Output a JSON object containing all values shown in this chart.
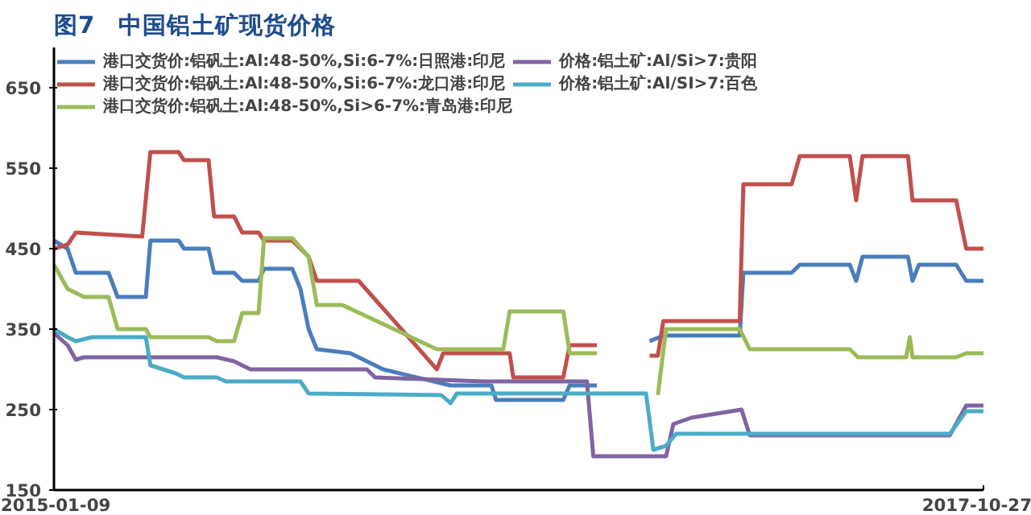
{
  "chart_data": {
    "type": "line",
    "title": "图7　中国铝土矿现货价格",
    "xlim": [
      "2015-01-09",
      "2017-10-27"
    ],
    "xticks": [
      "2015-01-09",
      "2017-10-27"
    ],
    "ylim": [
      150,
      700
    ],
    "yticks": [
      150,
      250,
      350,
      450,
      550,
      650
    ],
    "grid": false,
    "legend": "top left",
    "line_style": "solid",
    "marker": "none",
    "series": [
      {
        "name": "港口交货价:铝矾土:Al:48-50%,Si:6-7%:日照港:印尼",
        "color": "#4a7ebb",
        "x": [
          "2015-01-09",
          "2015-01-24",
          "2015-02-02",
          "2015-03-10",
          "2015-03-20",
          "2015-04-20",
          "2015-04-25",
          "2015-05-26",
          "2015-06-01",
          "2015-06-28",
          "2015-07-04",
          "2015-07-26",
          "2015-08-04",
          "2015-08-22",
          "2015-08-28",
          "2015-09-28",
          "2015-10-07",
          "2015-10-16",
          "2015-10-25",
          "2015-12-01",
          "2016-01-06",
          "2016-03-20",
          "2016-05-04",
          "2016-05-09",
          "2016-07-22",
          "2016-07-29",
          "2016-08-28",
          "2016-09-25",
          "2016-10-25",
          "2016-11-09",
          "2017-02-01",
          "2017-02-05",
          "2017-03-30",
          "2017-04-08",
          "2017-06-02",
          "2017-06-09",
          "2017-06-16",
          "2017-08-05",
          "2017-08-10",
          "2017-08-17",
          "2017-09-27",
          "2017-10-08",
          "2017-10-27"
        ],
        "values": [
          460,
          450,
          420,
          420,
          390,
          390,
          460,
          460,
          450,
          450,
          420,
          420,
          410,
          410,
          425,
          425,
          400,
          350,
          325,
          320,
          300,
          280,
          280,
          262,
          262,
          280,
          280,
          null,
          335,
          342,
          342,
          420,
          420,
          430,
          430,
          410,
          440,
          440,
          410,
          430,
          430,
          410,
          410
        ]
      },
      {
        "name": "港口交货价:铝矾土:Al:48-50%,Si:6-7%:龙口港:印尼",
        "color": "#c0504d",
        "x": [
          "2015-01-09",
          "2015-01-24",
          "2015-02-02",
          "2015-04-16",
          "2015-04-25",
          "2015-05-26",
          "2015-06-01",
          "2015-06-28",
          "2015-07-04",
          "2015-07-26",
          "2015-08-04",
          "2015-08-22",
          "2015-08-28",
          "2015-09-28",
          "2015-10-16",
          "2015-10-25",
          "2015-12-10",
          "2016-03-05",
          "2016-03-12",
          "2016-05-24",
          "2016-05-28",
          "2016-07-22",
          "2016-07-29",
          "2016-08-28",
          "2016-09-25",
          "2016-10-25",
          "2016-11-03",
          "2016-11-09",
          "2017-02-01",
          "2017-02-05",
          "2017-03-30",
          "2017-04-08",
          "2017-06-02",
          "2017-06-09",
          "2017-06-16",
          "2017-08-05",
          "2017-08-10",
          "2017-09-27",
          "2017-10-08",
          "2017-10-27"
        ],
        "values": [
          450,
          455,
          470,
          465,
          570,
          570,
          560,
          560,
          490,
          490,
          470,
          470,
          460,
          460,
          440,
          410,
          410,
          300,
          320,
          320,
          290,
          290,
          330,
          330,
          null,
          317,
          317,
          360,
          360,
          530,
          530,
          565,
          565,
          510,
          565,
          565,
          510,
          510,
          450,
          450
        ]
      },
      {
        "name": "港口交货价:铝矾土:Al:48-50%,Si>6-7%:青岛港:印尼",
        "color": "#9bbb59",
        "x": [
          "2015-01-09",
          "2015-01-24",
          "2015-02-11",
          "2015-03-10",
          "2015-03-20",
          "2015-04-20",
          "2015-04-25",
          "2015-06-28",
          "2015-07-07",
          "2015-07-26",
          "2015-08-04",
          "2015-08-22",
          "2015-08-28",
          "2015-09-28",
          "2015-10-16",
          "2015-10-25",
          "2015-11-22",
          "2016-03-05",
          "2016-05-17",
          "2016-05-24",
          "2016-07-22",
          "2016-07-29",
          "2016-08-28",
          "2016-09-25",
          "2016-11-03",
          "2016-11-12",
          "2017-02-01",
          "2017-02-12",
          "2017-06-02",
          "2017-06-11",
          "2017-08-03",
          "2017-08-07",
          "2017-08-10",
          "2017-09-27",
          "2017-10-08",
          "2017-10-27"
        ],
        "values": [
          430,
          400,
          390,
          390,
          350,
          350,
          340,
          340,
          335,
          335,
          370,
          370,
          463,
          463,
          440,
          380,
          380,
          325,
          325,
          372,
          372,
          320,
          320,
          null,
          268,
          350,
          350,
          325,
          325,
          315,
          315,
          340,
          315,
          315,
          320,
          320
        ]
      },
      {
        "name": "价格:铝土矿:Al/Si>7:贵阳",
        "color": "#8064a2",
        "x": [
          "2015-01-09",
          "2015-01-24",
          "2015-02-02",
          "2015-02-11",
          "2015-07-07",
          "2015-07-26",
          "2015-08-13",
          "2015-12-19",
          "2015-12-28",
          "2016-04-25",
          "2016-08-17",
          "2016-08-24",
          "2016-11-12",
          "2016-11-20",
          "2016-12-10",
          "2017-02-03",
          "2017-02-12",
          "2017-09-20",
          "2017-10-08",
          "2017-10-27"
        ],
        "values": [
          345,
          330,
          312,
          315,
          315,
          310,
          300,
          300,
          290,
          285,
          285,
          192,
          192,
          232,
          240,
          250,
          218,
          218,
          255,
          255
        ]
      },
      {
        "name": "价格:铝土矿:Al/SI>7:百色",
        "color": "#4bacc6",
        "x": [
          "2015-01-09",
          "2015-01-24",
          "2015-02-02",
          "2015-02-20",
          "2015-04-20",
          "2015-04-25",
          "2015-05-23",
          "2015-06-01",
          "2015-07-07",
          "2015-07-17",
          "2015-10-07",
          "2015-10-16",
          "2016-03-10",
          "2016-03-20",
          "2016-03-27",
          "2016-10-21",
          "2016-10-29",
          "2016-11-12",
          "2016-11-23",
          "2017-09-20",
          "2017-10-08",
          "2017-10-27"
        ],
        "values": [
          350,
          340,
          335,
          340,
          340,
          305,
          295,
          290,
          290,
          285,
          285,
          270,
          268,
          258,
          270,
          270,
          200,
          205,
          220,
          220,
          248,
          248
        ]
      }
    ]
  }
}
